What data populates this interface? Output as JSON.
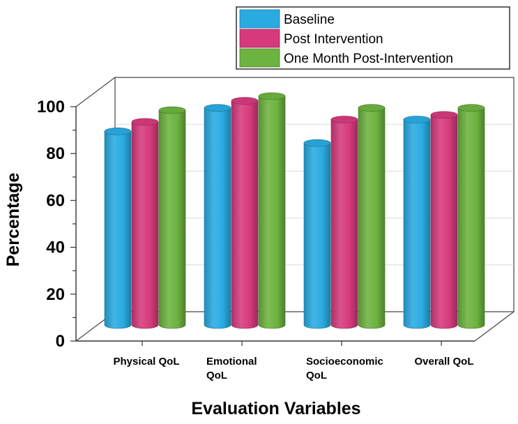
{
  "chart_data": {
    "type": "bar",
    "style": "3d-cylinder",
    "title": "",
    "xlabel": "Evaluation Variables",
    "ylabel": "Percentage",
    "ylim": [
      0,
      100
    ],
    "yticks": [
      "0",
      "20",
      "40",
      "60",
      "80",
      "100"
    ],
    "grid": true,
    "legend_position": "top-right",
    "categories": [
      [
        "Physical QoL"
      ],
      [
        "Emotional",
        "QoL"
      ],
      [
        "Socioeconomic",
        "QoL"
      ],
      [
        "Overall QoL"
      ]
    ],
    "series": [
      {
        "name": "Baseline",
        "color": "#29abe2",
        "values": [
          77,
          87,
          72,
          82
        ]
      },
      {
        "name": "Post Intervention",
        "color": "#d63a7c",
        "values": [
          81,
          90,
          82,
          84
        ]
      },
      {
        "name": "One Month Post-Intervention",
        "color": "#6cb33f",
        "values": [
          86,
          92,
          87,
          87
        ]
      }
    ]
  }
}
